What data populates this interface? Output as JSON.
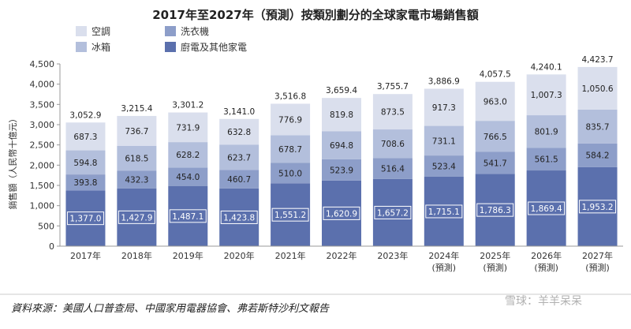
{
  "chart_data": {
    "type": "bar",
    "stacked": true,
    "title": "2017年至2027年（預測）按類別劃分的全球家電市場銷售額",
    "ylabel": "銷售額（人民幣十億元）",
    "ylim": [
      0,
      4500
    ],
    "yticks": [
      "0",
      "500",
      "1,000",
      "1,500",
      "2,000",
      "2,500",
      "3,000",
      "3,500",
      "4,000",
      "4,500"
    ],
    "categories": [
      {
        "l1": "2017年",
        "l2": ""
      },
      {
        "l1": "2018年",
        "l2": ""
      },
      {
        "l1": "2019年",
        "l2": ""
      },
      {
        "l1": "2020年",
        "l2": ""
      },
      {
        "l1": "2021年",
        "l2": ""
      },
      {
        "l1": "2022年",
        "l2": ""
      },
      {
        "l1": "2023年",
        "l2": ""
      },
      {
        "l1": "2024年",
        "l2": "(預測)"
      },
      {
        "l1": "2025年",
        "l2": "(預測)"
      },
      {
        "l1": "2026年",
        "l2": "(預測)"
      },
      {
        "l1": "2027年",
        "l2": "(預測)"
      }
    ],
    "series": [
      {
        "name": "廚電及其他家電",
        "color": "#5b70ad",
        "label_color": "#ffffff",
        "values": [
          1377.0,
          1427.9,
          1487.1,
          1423.8,
          1551.2,
          1620.9,
          1657.2,
          1715.1,
          1786.3,
          1869.4,
          1953.2
        ],
        "labels": [
          "1,377.0",
          "1,427.9",
          "1,487.1",
          "1,423.8",
          "1,551.2",
          "1,620.9",
          "1,657.2",
          "1,715.1",
          "1,786.3",
          "1,869.4",
          "1,953.2"
        ]
      },
      {
        "name": "洗衣機",
        "color": "#8d9ec9",
        "label_color": "#222222",
        "values": [
          393.8,
          432.3,
          454.0,
          460.7,
          510.0,
          523.9,
          516.4,
          523.4,
          541.7,
          561.5,
          584.2
        ],
        "labels": [
          "393.8",
          "432.3",
          "454.0",
          "460.7",
          "510.0",
          "523.9",
          "516.4",
          "523.4",
          "541.7",
          "561.5",
          "584.2"
        ]
      },
      {
        "name": "冰箱",
        "color": "#b3bfdc",
        "label_color": "#222222",
        "values": [
          594.8,
          618.5,
          628.2,
          623.7,
          678.7,
          694.8,
          708.6,
          731.1,
          766.5,
          801.9,
          835.7
        ],
        "labels": [
          "594.8",
          "618.5",
          "628.2",
          "623.7",
          "678.7",
          "694.8",
          "708.6",
          "731.1",
          "766.5",
          "801.9",
          "835.7"
        ]
      },
      {
        "name": "空調",
        "color": "#dadfed",
        "label_color": "#222222",
        "values": [
          687.3,
          736.7,
          731.9,
          632.8,
          776.9,
          819.8,
          873.5,
          917.3,
          963.0,
          1007.3,
          1050.6
        ],
        "labels": [
          "687.3",
          "736.7",
          "731.9",
          "632.8",
          "776.9",
          "819.8",
          "873.5",
          "917.3",
          "963.0",
          "1,007.3",
          "1,050.6"
        ]
      }
    ],
    "totals": [
      3052.9,
      3215.4,
      3301.2,
      3141.0,
      3516.8,
      3659.4,
      3755.7,
      3886.9,
      4057.5,
      4240.1,
      4423.7
    ],
    "total_labels": [
      "3,052.9",
      "3,215.4",
      "3,301.2",
      "3,141.0",
      "3,516.8",
      "3,659.4",
      "3,755.7",
      "3,886.9",
      "4,057.5",
      "4,240.1",
      "4,423.7"
    ],
    "legend": [
      {
        "name": "空調",
        "color": "#dadfed"
      },
      {
        "name": "洗衣機",
        "color": "#8d9ec9"
      },
      {
        "name": "冰箱",
        "color": "#b3bfdc"
      },
      {
        "name": "廚電及其他家電",
        "color": "#5b70ad"
      }
    ],
    "legend_position": "top-left",
    "grid": false
  },
  "source": "資料來源：美國人口普查局、中國家用電器協會、弗若斯特沙利文報告",
  "watermark": "雪球：羊羊呆呆",
  "colors": {
    "axis": "#999999",
    "text": "#222222"
  }
}
